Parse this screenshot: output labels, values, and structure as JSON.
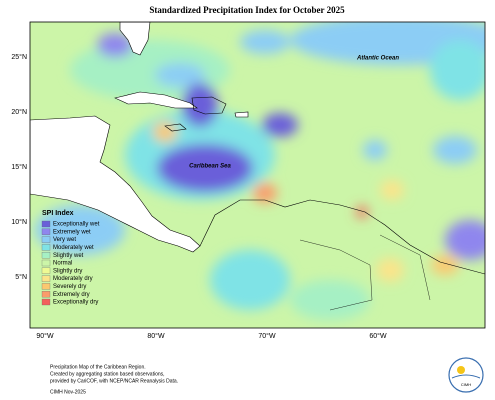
{
  "title": "Standardized Precipitation Index for October 2025",
  "ocean_labels": [
    "Atlantic Ocean",
    "Caribbean Sea"
  ],
  "lat_labels": [
    "25°N",
    "20°N",
    "15°N",
    "10°N",
    "5°N"
  ],
  "lon_labels": [
    "90°W",
    "80°W",
    "70°W",
    "60°W"
  ],
  "legend": {
    "title": "SPI Index",
    "items": [
      {
        "label": "Exceptionally wet",
        "color": "#6a5fd9"
      },
      {
        "label": "Extremely wet",
        "color": "#8f86ee"
      },
      {
        "label": "Very wet",
        "color": "#8ccdf5"
      },
      {
        "label": "Moderately wet",
        "color": "#7fe3e6"
      },
      {
        "label": "Slightly wet",
        "color": "#a6f0c4"
      },
      {
        "label": "Normal",
        "color": "#ccf5a8"
      },
      {
        "label": "Slightly dry",
        "color": "#eefa94"
      },
      {
        "label": "Moderately dry",
        "color": "#fbe48a"
      },
      {
        "label": "Severely dry",
        "color": "#fcc870"
      },
      {
        "label": "Extremely dry",
        "color": "#fb9b6b"
      },
      {
        "label": "Exceptionally dry",
        "color": "#f3605c"
      }
    ]
  },
  "footnote": [
    "Precipitation Map of the Caribbean Region.",
    "Created by aggregating station based observations,",
    "provided by CariCOF, with NCEP/NCAR Reanalysis Data."
  ],
  "credit": "CIMH Nov-2025",
  "logo": "CIMH"
}
